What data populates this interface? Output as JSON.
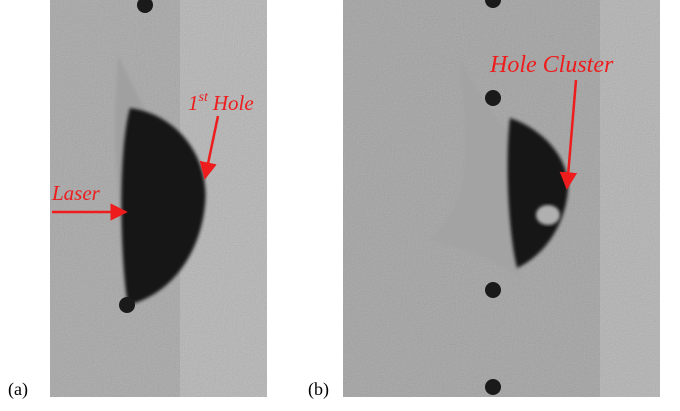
{
  "panels": [
    {
      "label": "(a)",
      "annotations": {
        "laser": "Laser",
        "hole_num": "1",
        "hole_sup": "st",
        "hole_word": "Hole"
      }
    },
    {
      "label": "(b)",
      "annotations": {
        "cluster": "Hole Cluster"
      }
    }
  ]
}
